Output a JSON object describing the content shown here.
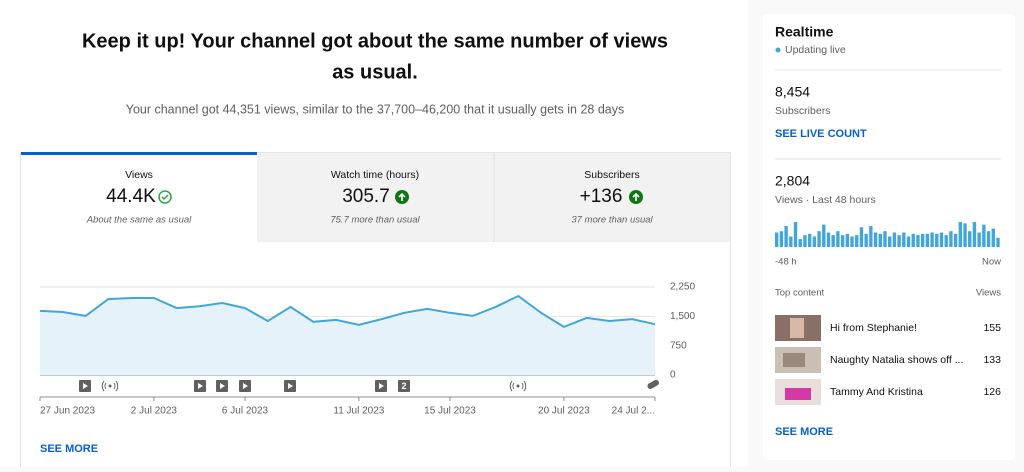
{
  "header": {
    "title_lines": [
      "Keep it up! Your channel got about the same number of views",
      "as usual."
    ],
    "subtitle": "Your channel got 44,351 views, similar to the 37,700–46,200 that it usually gets in 28 days"
  },
  "tabs": [
    {
      "label": "Views",
      "value": "44.4K",
      "note": "About the same as usual"
    },
    {
      "label": "Watch time (hours)",
      "value": "305.7",
      "note": "75.7 more than usual"
    },
    {
      "label": "Subscribers",
      "value": "+136",
      "note": "37 more than usual"
    }
  ],
  "chart_data": {
    "type": "line",
    "color": "#41a6d9",
    "fill": "#e6f2fa",
    "grid": true,
    "categories": [
      "27 Jun 2023",
      null,
      null,
      null,
      null,
      "2 Jul 2023",
      null,
      null,
      null,
      "6 Jul 2023",
      null,
      null,
      null,
      null,
      "11 Jul 2023",
      null,
      null,
      null,
      "15 Jul 2023",
      null,
      null,
      null,
      null,
      "20 Jul 2023",
      null,
      null,
      null,
      "24 Jul 2..."
    ],
    "values": [
      1640,
      1610,
      1510,
      1940,
      1970,
      1970,
      1710,
      1760,
      1840,
      1710,
      1380,
      1740,
      1360,
      1410,
      1280,
      1430,
      1590,
      1690,
      1590,
      1510,
      1740,
      2020,
      1590,
      1230,
      1460,
      1380,
      1430,
      1300
    ],
    "ylim": [
      0,
      2250
    ],
    "yticks": [
      0,
      750,
      {
        "value": 1500,
        "label": "1,500"
      },
      {
        "value": 2250,
        "label": "2,250"
      }
    ],
    "event_badge": "2"
  },
  "see_more": "SEE MORE",
  "realtime": {
    "title": "Realtime",
    "status": "Updating live",
    "subscribers": "8,454",
    "subscribers_label": "Subscribers",
    "live_link": "SEE LIVE COUNT",
    "views": "2,804",
    "views_label": "Views · Last 48 hours",
    "hourly": {
      "type": "bar",
      "color": "#41a6d9",
      "values": [
        55,
        60,
        80,
        40,
        95,
        30,
        45,
        50,
        40,
        60,
        85,
        55,
        45,
        60,
        45,
        50,
        40,
        45,
        75,
        50,
        80,
        55,
        50,
        60,
        40,
        55,
        45,
        55,
        40,
        50,
        45,
        50,
        50,
        55,
        50,
        55,
        45,
        60,
        50,
        95,
        90,
        60,
        95,
        55,
        85,
        60,
        70,
        35
      ],
      "x_start": "-48 h",
      "x_end": "Now"
    },
    "top_content_label": "Top content",
    "top_views_label": "Views",
    "top_content": [
      {
        "title": "Hi from Stephanie!",
        "views": "155"
      },
      {
        "title": "Naughty Natalia shows off ...",
        "views": "133"
      },
      {
        "title": "Tammy And Kristina",
        "views": "126"
      }
    ],
    "see_more": "SEE MORE"
  }
}
